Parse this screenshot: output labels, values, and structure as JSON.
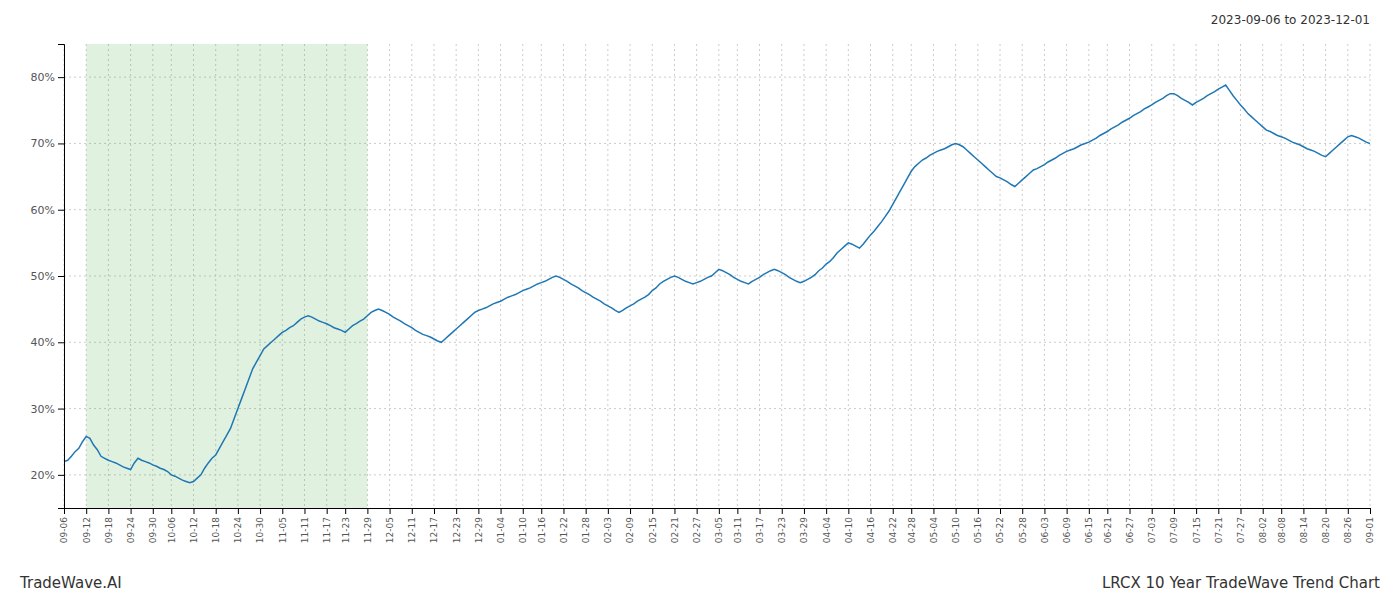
{
  "chart_data": {
    "type": "line",
    "title": "LRCX 10 Year TradeWave Trend Chart",
    "subtitle": "2023-09-06 to 2023-12-01",
    "annotations": [
      "TradeWave.AI"
    ],
    "grid": true,
    "ylim": [
      0.15,
      0.85
    ],
    "yticks": [
      {
        "value": 0.2,
        "label": "20%"
      },
      {
        "value": 0.3,
        "label": "30%"
      },
      {
        "value": 0.4,
        "label": "40%"
      },
      {
        "value": 0.5,
        "label": "50%"
      },
      {
        "value": 0.6,
        "label": "60%"
      },
      {
        "value": 0.7,
        "label": "70%"
      },
      {
        "value": 0.8,
        "label": "80%"
      }
    ],
    "shaded_range": [
      "09-12",
      "11-29"
    ],
    "categories": [
      "09-06",
      null,
      null,
      null,
      null,
      null,
      "09-12",
      null,
      null,
      null,
      null,
      null,
      "09-18",
      null,
      null,
      null,
      null,
      null,
      "09-24",
      null,
      null,
      null,
      null,
      null,
      "09-30",
      null,
      null,
      null,
      null,
      "10-06",
      null,
      null,
      null,
      null,
      null,
      "10-12",
      null,
      null,
      null,
      null,
      null,
      "10-18",
      null,
      null,
      null,
      null,
      null,
      "10-24",
      null,
      null,
      null,
      null,
      null,
      "10-30",
      null,
      null,
      null,
      null,
      null,
      "11-05",
      null,
      null,
      null,
      null,
      null,
      "11-11",
      null,
      null,
      null,
      null,
      null,
      "11-17",
      null,
      null,
      null,
      null,
      "11-23",
      null,
      null,
      null,
      null,
      null,
      "11-29",
      null,
      null,
      null,
      null,
      null,
      "12-05",
      null,
      null,
      null,
      null,
      null,
      "12-11",
      null,
      null,
      null,
      null,
      null,
      "12-17",
      null,
      null,
      null,
      null,
      null,
      "12-23",
      null,
      null,
      null,
      null,
      null,
      "12-29",
      null,
      null,
      null,
      null,
      null,
      "01-04",
      null,
      null,
      null,
      null,
      null,
      "01-10",
      null,
      null,
      null,
      null,
      "01-16",
      null,
      null,
      null,
      null,
      null,
      "01-22",
      null,
      null,
      null,
      null,
      null,
      "01-28",
      null,
      null,
      null,
      null,
      null,
      "02-03",
      null,
      null,
      null,
      null,
      null,
      "02-09",
      null,
      null,
      null,
      null,
      null,
      "02-15",
      null,
      null,
      null,
      null,
      null,
      "02-21",
      null,
      null,
      null,
      null,
      null,
      "02-27",
      null,
      null,
      null,
      null,
      null,
      "03-05",
      null,
      null,
      null,
      null,
      "03-11",
      null,
      null,
      null,
      null,
      null,
      "03-17",
      null,
      null,
      null,
      null,
      null,
      "03-23",
      null,
      null,
      null,
      null,
      null,
      "03-29",
      null,
      null,
      null,
      null,
      null,
      "04-04",
      null,
      null,
      null,
      null,
      null,
      "04-10",
      null,
      null,
      null,
      null,
      null,
      "04-16",
      null,
      null,
      null,
      null,
      null,
      "04-22",
      null,
      null,
      null,
      null,
      "04-28",
      null,
      null,
      null,
      null,
      null,
      "05-04",
      null,
      null,
      null,
      null,
      null,
      "05-10",
      null,
      null,
      null,
      null,
      null,
      "05-16",
      null,
      null,
      null,
      null,
      null,
      "05-22",
      null,
      null,
      null,
      null,
      null,
      "05-28",
      null,
      null,
      null,
      null,
      null,
      "06-03",
      null,
      null,
      null,
      null,
      null,
      "06-09",
      null,
      null,
      null,
      null,
      null,
      "06-15",
      null,
      null,
      null,
      null,
      "06-21",
      null,
      null,
      null,
      null,
      null,
      "06-27",
      null,
      null,
      null,
      null,
      null,
      "07-03",
      null,
      null,
      null,
      null,
      null,
      "07-09",
      null,
      null,
      null,
      null,
      null,
      "07-15",
      null,
      null,
      null,
      null,
      null,
      "07-21",
      null,
      null,
      null,
      null,
      null,
      "07-27",
      null,
      null,
      null,
      null,
      null,
      "08-02",
      null,
      null,
      null,
      null,
      "08-08",
      null,
      null,
      null,
      null,
      null,
      "08-14",
      null,
      null,
      null,
      null,
      null,
      "08-20",
      null,
      null,
      null,
      null,
      null,
      "08-26",
      null,
      null,
      null,
      null,
      null,
      "09-01"
    ],
    "values": [
      0.22,
      0.222,
      0.228,
      0.235,
      0.24,
      0.25,
      0.258,
      0.255,
      0.245,
      0.238,
      0.228,
      0.225,
      0.222,
      0.22,
      0.218,
      0.215,
      0.212,
      0.21,
      0.208,
      0.218,
      0.225,
      0.222,
      0.22,
      0.218,
      0.215,
      0.213,
      0.21,
      0.208,
      0.205,
      0.2,
      0.198,
      0.195,
      0.192,
      0.19,
      0.188,
      0.19,
      0.195,
      0.2,
      0.21,
      0.218,
      0.225,
      0.23,
      0.24,
      0.25,
      0.26,
      0.27,
      0.285,
      0.3,
      0.315,
      0.33,
      0.345,
      0.36,
      0.37,
      0.38,
      0.39,
      0.395,
      0.4,
      0.405,
      0.41,
      0.415,
      0.418,
      0.422,
      0.425,
      0.43,
      0.435,
      0.438,
      0.44,
      0.438,
      0.435,
      0.432,
      0.43,
      0.428,
      0.425,
      0.422,
      0.42,
      0.418,
      0.415,
      0.42,
      0.425,
      0.428,
      0.432,
      0.435,
      0.44,
      0.445,
      0.448,
      0.45,
      0.448,
      0.445,
      0.442,
      0.438,
      0.435,
      0.432,
      0.428,
      0.425,
      0.422,
      0.418,
      0.415,
      0.412,
      0.41,
      0.408,
      0.405,
      0.402,
      0.4,
      0.405,
      0.41,
      0.415,
      0.42,
      0.425,
      0.43,
      0.435,
      0.44,
      0.445,
      0.448,
      0.45,
      0.452,
      0.455,
      0.458,
      0.46,
      0.462,
      0.465,
      0.468,
      0.47,
      0.472,
      0.475,
      0.478,
      0.48,
      0.482,
      0.485,
      0.488,
      0.49,
      0.492,
      0.495,
      0.498,
      0.5,
      0.498,
      0.495,
      0.492,
      0.488,
      0.485,
      0.482,
      0.478,
      0.475,
      0.472,
      0.468,
      0.465,
      0.462,
      0.458,
      0.455,
      0.452,
      0.448,
      0.445,
      0.448,
      0.452,
      0.455,
      0.458,
      0.462,
      0.465,
      0.468,
      0.472,
      0.478,
      0.482,
      0.488,
      0.492,
      0.495,
      0.498,
      0.5,
      0.498,
      0.495,
      0.492,
      0.49,
      0.488,
      0.49,
      0.492,
      0.495,
      0.498,
      0.5,
      0.505,
      0.51,
      0.508,
      0.505,
      0.502,
      0.498,
      0.495,
      0.492,
      0.49,
      0.488,
      0.492,
      0.495,
      0.498,
      0.502,
      0.505,
      0.508,
      0.51,
      0.508,
      0.505,
      0.502,
      0.498,
      0.495,
      0.492,
      0.49,
      0.492,
      0.495,
      0.498,
      0.502,
      0.508,
      0.512,
      0.518,
      0.522,
      0.528,
      0.535,
      0.54,
      0.545,
      0.55,
      0.548,
      0.545,
      0.542,
      0.548,
      0.555,
      0.562,
      0.568,
      0.575,
      0.582,
      0.59,
      0.598,
      0.608,
      0.618,
      0.628,
      0.638,
      0.648,
      0.658,
      0.665,
      0.67,
      0.675,
      0.678,
      0.682,
      0.685,
      0.688,
      0.69,
      0.692,
      0.695,
      0.698,
      0.7,
      0.698,
      0.695,
      0.69,
      0.685,
      0.68,
      0.675,
      0.67,
      0.665,
      0.66,
      0.655,
      0.65,
      0.648,
      0.645,
      0.642,
      0.638,
      0.635,
      0.64,
      0.645,
      0.65,
      0.655,
      0.66,
      0.662,
      0.665,
      0.668,
      0.672,
      0.675,
      0.678,
      0.682,
      0.685,
      0.688,
      0.69,
      0.692,
      0.695,
      0.698,
      0.7,
      0.702,
      0.705,
      0.708,
      0.712,
      0.715,
      0.718,
      0.722,
      0.725,
      0.728,
      0.732,
      0.735,
      0.738,
      0.742,
      0.745,
      0.748,
      0.752,
      0.755,
      0.758,
      0.762,
      0.765,
      0.768,
      0.772,
      0.775,
      0.775,
      0.772,
      0.768,
      0.765,
      0.762,
      0.758,
      0.762,
      0.765,
      0.768,
      0.772,
      0.775,
      0.778,
      0.782,
      0.785,
      0.788,
      0.78,
      0.772,
      0.765,
      0.758,
      0.752,
      0.745,
      0.74,
      0.735,
      0.73,
      0.725,
      0.72,
      0.718,
      0.715,
      0.712,
      0.71,
      0.708,
      0.705,
      0.702,
      0.7,
      0.698,
      0.695,
      0.692,
      0.69,
      0.688,
      0.685,
      0.682,
      0.68,
      0.685,
      0.69,
      0.695,
      0.7,
      0.705,
      0.71,
      0.712,
      0.71,
      0.708,
      0.705,
      0.702,
      0.7
    ]
  }
}
